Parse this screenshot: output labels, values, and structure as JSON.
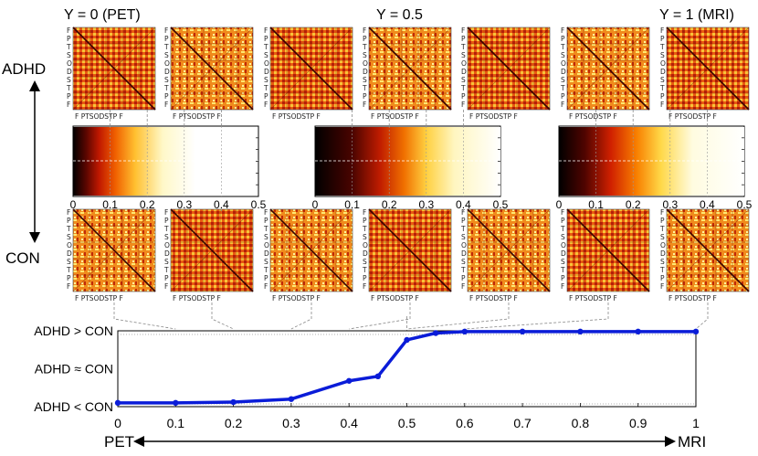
{
  "top_labels": [
    "Y = 0 (PET)",
    "Y = 0.5",
    "Y = 1 (MRI)"
  ],
  "row_labels": {
    "adhd": "ADHD",
    "con": "CON"
  },
  "matrix_tick_x": "F PTSODSTP F",
  "matrix_tick_y": [
    "F",
    "P",
    "T",
    "S",
    "O",
    "D",
    "S",
    "T",
    "P",
    "F"
  ],
  "histograms": [
    {
      "ticks": [
        "0",
        "0.1",
        "0.2",
        "0.3",
        "0.4",
        "0.5"
      ],
      "span": 0.22
    },
    {
      "ticks": [
        "0",
        "0.1",
        "0.2",
        "0.3",
        "0.4",
        "0.5"
      ],
      "span": 0.35
    },
    {
      "ticks": [
        "0",
        "0.1",
        "0.2",
        "0.3",
        "0.4",
        "0.5"
      ],
      "span": 0.3
    }
  ],
  "axis_end_labels": {
    "left": "PET",
    "right": "MRI"
  },
  "colors": {
    "line": "#0a1cd8",
    "dash": "#888888",
    "dot": "#9a9a9a"
  },
  "chart_data": {
    "type": "line",
    "title": "",
    "xlabel": "PET ↔ MRI",
    "ylabel": "",
    "x": [
      0,
      0.1,
      0.2,
      0.3,
      0.4,
      0.45,
      0.5,
      0.55,
      0.6,
      0.7,
      0.8,
      0.9,
      1.0
    ],
    "values": [
      0.05,
      0.05,
      0.06,
      0.1,
      0.34,
      0.4,
      0.88,
      0.97,
      0.99,
      0.99,
      0.99,
      0.99,
      0.99
    ],
    "xlim": [
      0,
      1
    ],
    "ylim": [
      0,
      1
    ],
    "xticks": [
      "0",
      "0.1",
      "0.2",
      "0.3",
      "0.4",
      "0.5",
      "0.6",
      "0.7",
      "0.8",
      "0.9",
      "1"
    ],
    "yticks": [
      "ADHD < CON",
      "ADHD ≈ CON",
      "ADHD > CON"
    ]
  }
}
